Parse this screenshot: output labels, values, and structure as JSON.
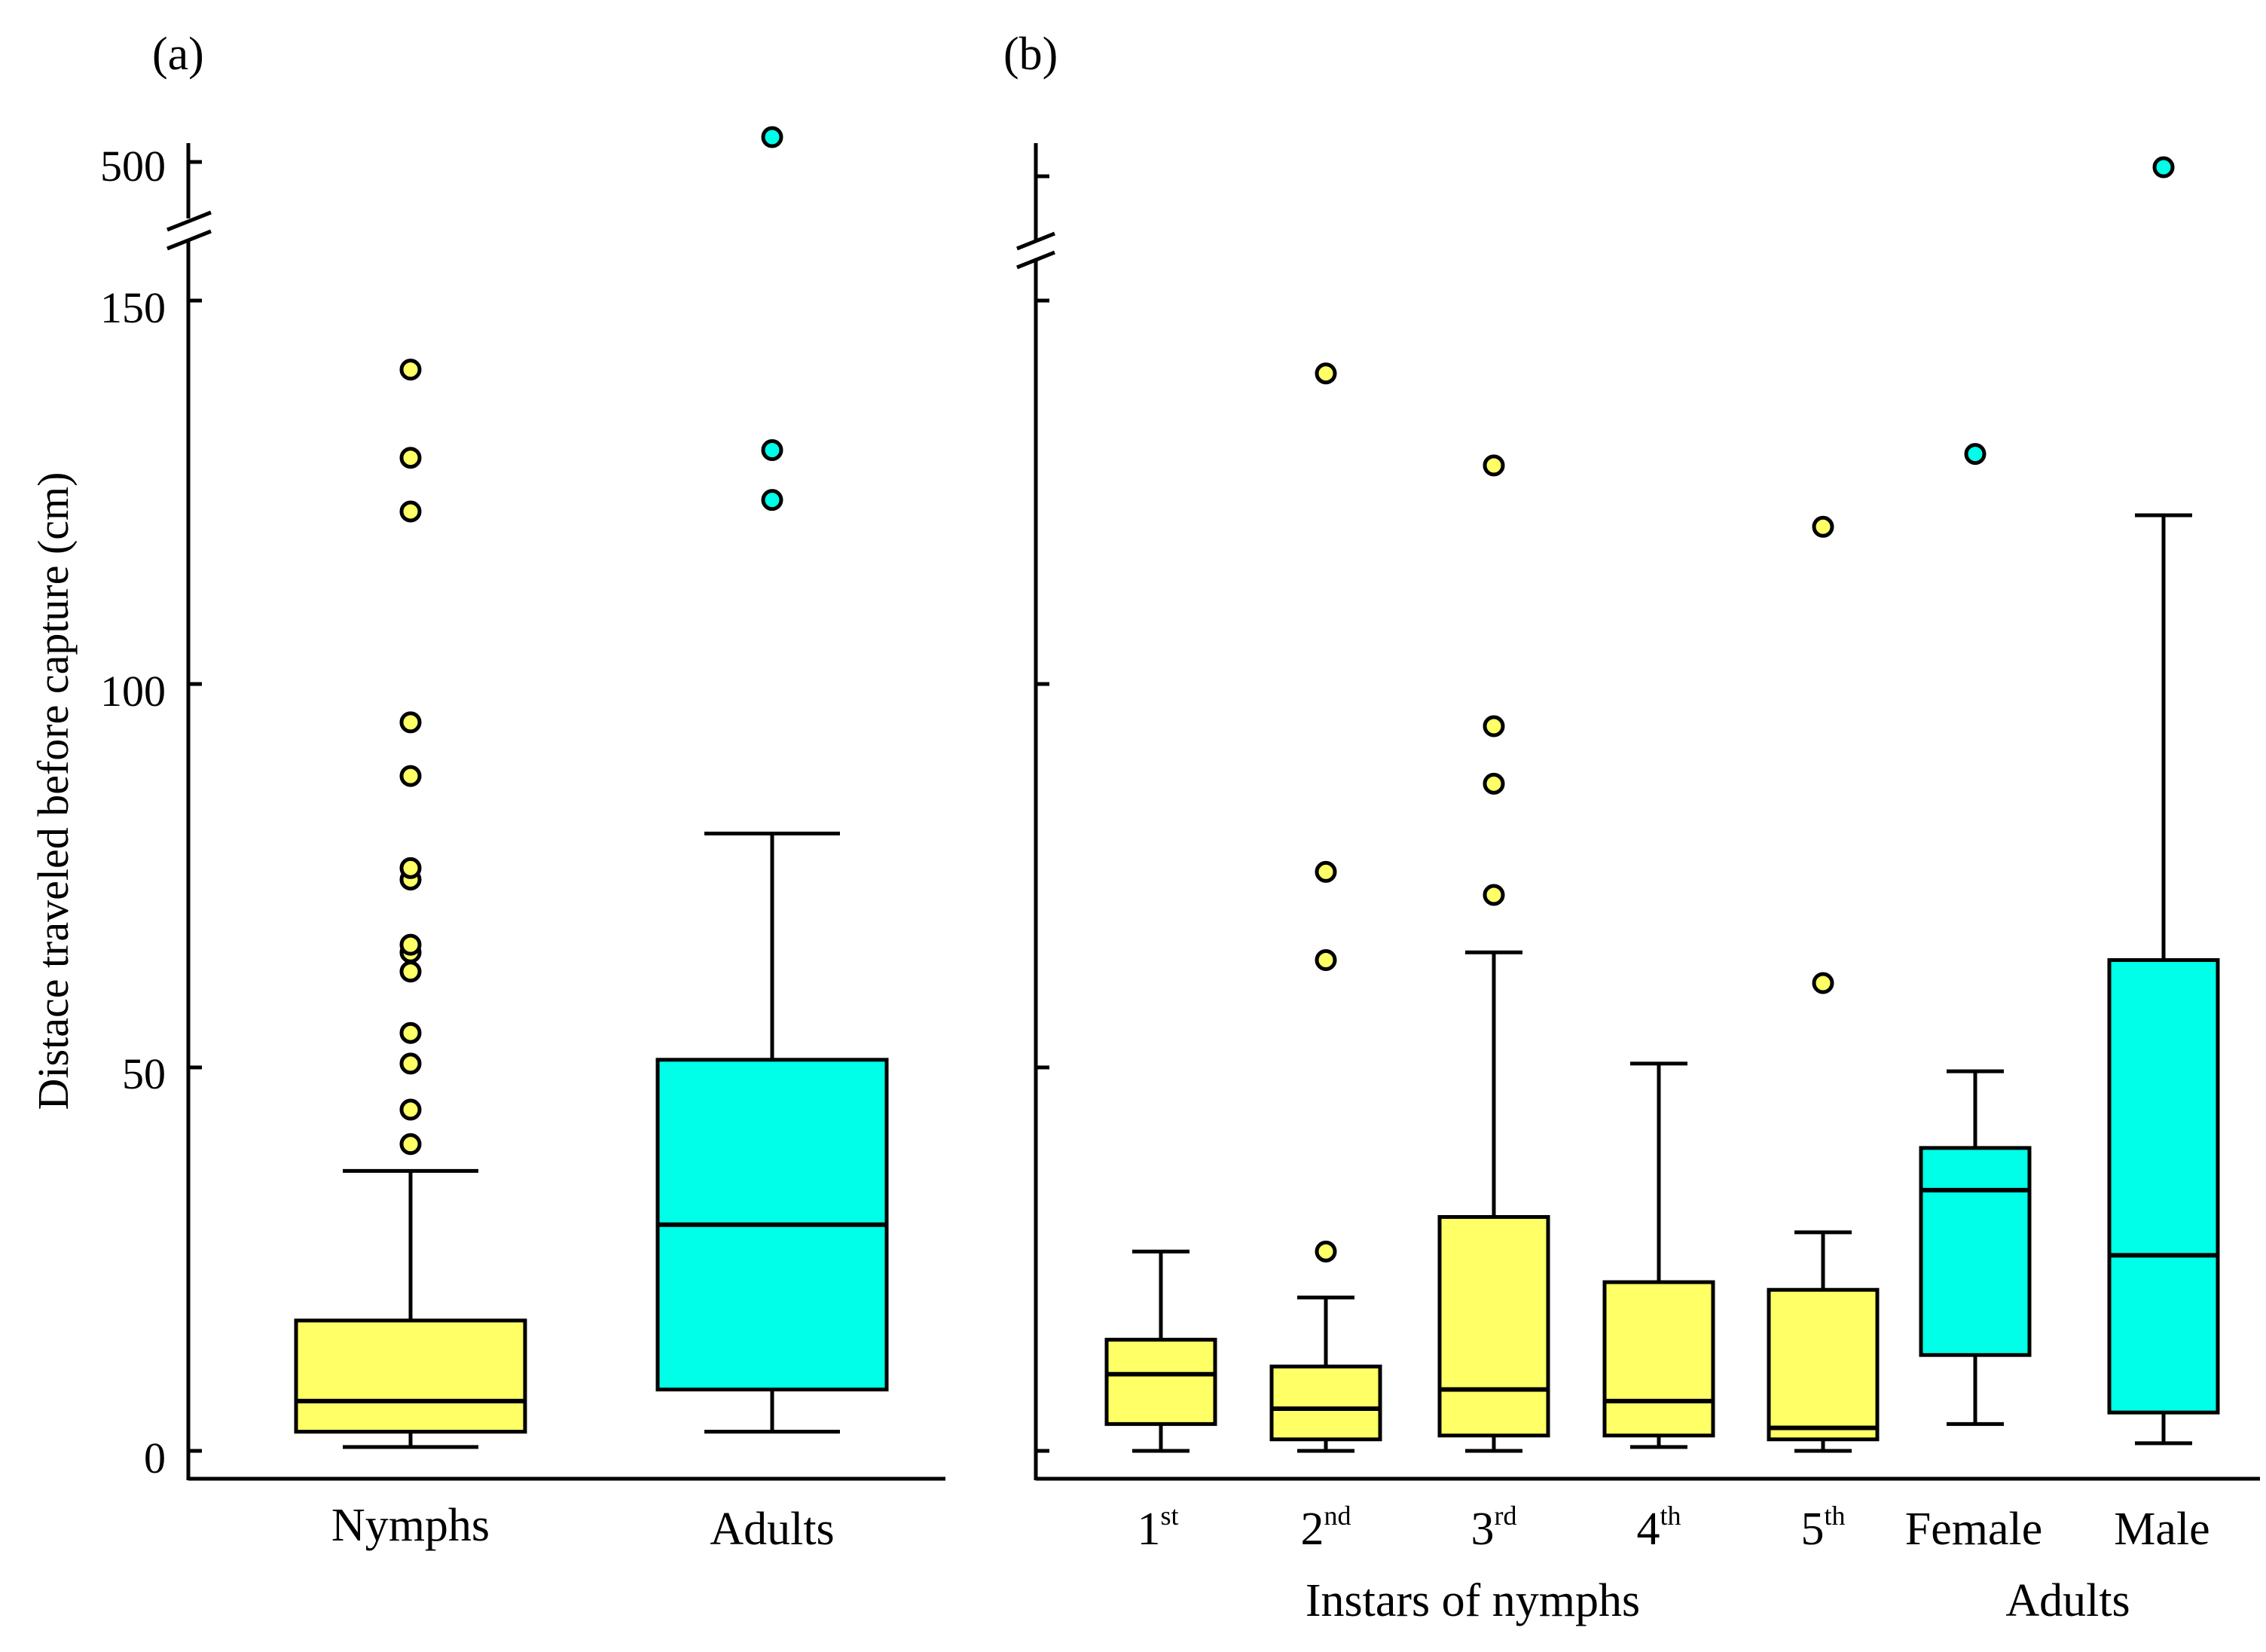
{
  "chart_data": [
    {
      "panel_label": "(a)",
      "type": "box",
      "ylabel": "Distace traveled before capture (cm)",
      "y_ticks": [
        0,
        50,
        100,
        150,
        500
      ],
      "y_axis_break": "between 150 and 500",
      "categories": [
        "Nymphs",
        "Adults"
      ],
      "boxes": [
        {
          "label": "Nymphs",
          "color": "#FFFF66",
          "min": 0.5,
          "q1": 2.5,
          "median": 6.5,
          "q3": 17,
          "max": 36.5,
          "outliers": [
            40,
            44.5,
            50.5,
            54.5,
            62.5,
            65,
            66,
            74.5,
            76,
            88,
            95,
            122.5,
            129.5,
            141
          ]
        },
        {
          "label": "Adults",
          "color": "#00FFE8",
          "min": 2.5,
          "q1": 8,
          "median": 29.5,
          "q3": 51,
          "max": 80.5,
          "outliers": [
            124,
            130.5,
            520
          ]
        }
      ]
    },
    {
      "panel_label": "(b)",
      "type": "box",
      "y_ticks": [
        0,
        50,
        100,
        150,
        500
      ],
      "y_axis_break": "between 150 and 500",
      "groups": [
        {
          "label": "Instars of nymphs",
          "categories": [
            "1st",
            "2nd",
            "3rd",
            "4th",
            "5th"
          ]
        },
        {
          "label": "Adults",
          "categories": [
            "Female",
            "Male"
          ]
        }
      ],
      "boxes": [
        {
          "label_base": "1",
          "label_sup": "st",
          "color": "#FFFF66",
          "min": 0,
          "q1": 3.5,
          "median": 10,
          "q3": 14.5,
          "max": 26,
          "outliers": []
        },
        {
          "label_base": "2",
          "label_sup": "nd",
          "color": "#FFFF66",
          "min": 0,
          "q1": 1.5,
          "median": 5.5,
          "q3": 11,
          "max": 20,
          "outliers": [
            26,
            64,
            75.5,
            140.5
          ]
        },
        {
          "label_base": "3",
          "label_sup": "rd",
          "color": "#FFFF66",
          "min": 0,
          "q1": 2,
          "median": 8,
          "q3": 30.5,
          "max": 65,
          "outliers": [
            72.5,
            87,
            94.5,
            128.5
          ]
        },
        {
          "label_base": "4",
          "label_sup": "th",
          "color": "#FFFF66",
          "min": 0.5,
          "q1": 2,
          "median": 6.5,
          "q3": 22,
          "max": 50.5,
          "outliers": []
        },
        {
          "label_base": "5",
          "label_sup": "th",
          "color": "#FFFF66",
          "min": 0,
          "q1": 1.5,
          "median": 3,
          "q3": 21,
          "max": 28.5,
          "outliers": [
            61,
            120.5
          ]
        },
        {
          "label_base": "Female",
          "label_sup": "",
          "color": "#00FFE8",
          "min": 3.5,
          "q1": 12.5,
          "median": 34,
          "q3": 39.5,
          "max": 49.5,
          "outliers": [
            130
          ]
        },
        {
          "label_base": "Male",
          "label_sup": "",
          "color": "#00FFE8",
          "min": 1,
          "q1": 5,
          "median": 25.5,
          "q3": 64,
          "max": 122,
          "outliers": [
            500
          ]
        }
      ]
    }
  ]
}
